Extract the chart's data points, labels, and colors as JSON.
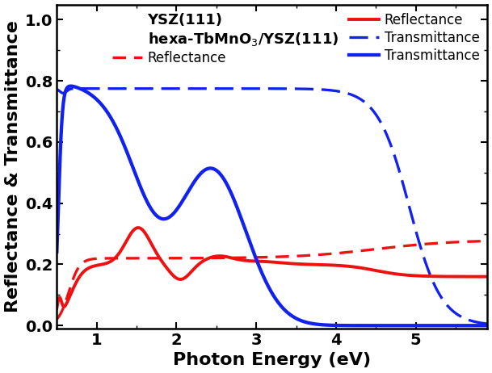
{
  "xlabel": "Photon Energy (eV)",
  "ylabel": "Reflectance & Transmittance",
  "xlim": [
    0.5,
    5.9
  ],
  "ylim": [
    -0.01,
    1.05
  ],
  "yticks": [
    0.0,
    0.2,
    0.4,
    0.6,
    0.8,
    1.0
  ],
  "xticks": [
    1,
    2,
    3,
    4,
    5
  ],
  "legend_title_left": "YSZ(111)",
  "legend_title_right": "hexa-TbMnO$_3$/YSZ(111)",
  "label_reflectance": "Reflectance",
  "label_transmittance": "Transmittance",
  "color_red": "#ee1111",
  "color_blue": "#1122ee",
  "linewidth": 2.8,
  "fontsize_label": 16,
  "fontsize_tick": 14,
  "fontsize_legend": 12
}
